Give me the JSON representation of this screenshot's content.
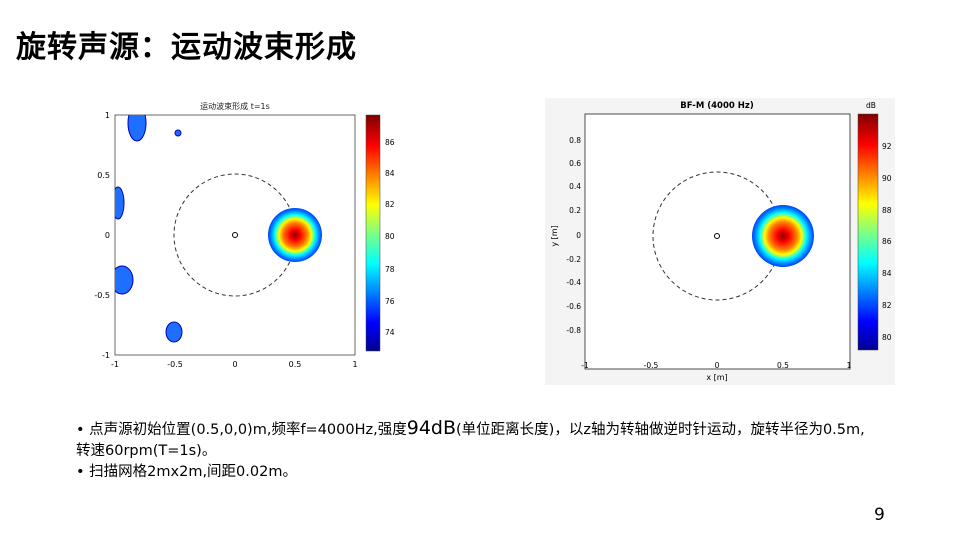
{
  "slide": {
    "title": "旋转声源：运动波束形成",
    "page_number": "9"
  },
  "figure_left": {
    "title": "运动波束形成 t=1s",
    "x_ticks": [
      "-1",
      "-0.5",
      "0",
      "0.5",
      "1"
    ],
    "y_ticks": [
      "1",
      "0.5",
      "0",
      "-0.5",
      "-1"
    ],
    "colorbar_ticks": [
      "86",
      "84",
      "82",
      "80",
      "78",
      "76",
      "74"
    ]
  },
  "figure_right": {
    "title": "BF-M (4000 Hz)",
    "xlabel": "x [m]",
    "ylabel": "y [m]",
    "colorbar_unit": "dB",
    "x_ticks": [
      "-1",
      "-0.5",
      "0",
      "0.5",
      "1"
    ],
    "y_ticks": [
      "0.8",
      "0.6",
      "0.4",
      "0.2",
      "0",
      "-0.2",
      "-0.4",
      "-0.6",
      "-0.8"
    ],
    "colorbar_ticks": [
      "92",
      "90",
      "88",
      "86",
      "84",
      "82",
      "80"
    ]
  },
  "text": {
    "bullet1_pre": "点声源初始位置(0.5,0,0)m,频率f=4000Hz,强度",
    "bullet1_big": "94dB",
    "bullet1_post": "(单位距离长度)，以z轴为转轴做逆时针运动，旋转半径为0.5m,转速60rpm(T=1s)。",
    "bullet2": "扫描网格2mx2m,间距0.02m。"
  },
  "colors": {
    "jet": [
      "#00008f",
      "#0000ff",
      "#0080ff",
      "#00ffff",
      "#80ff80",
      "#ffff00",
      "#ff8000",
      "#ff0000",
      "#800000"
    ]
  }
}
